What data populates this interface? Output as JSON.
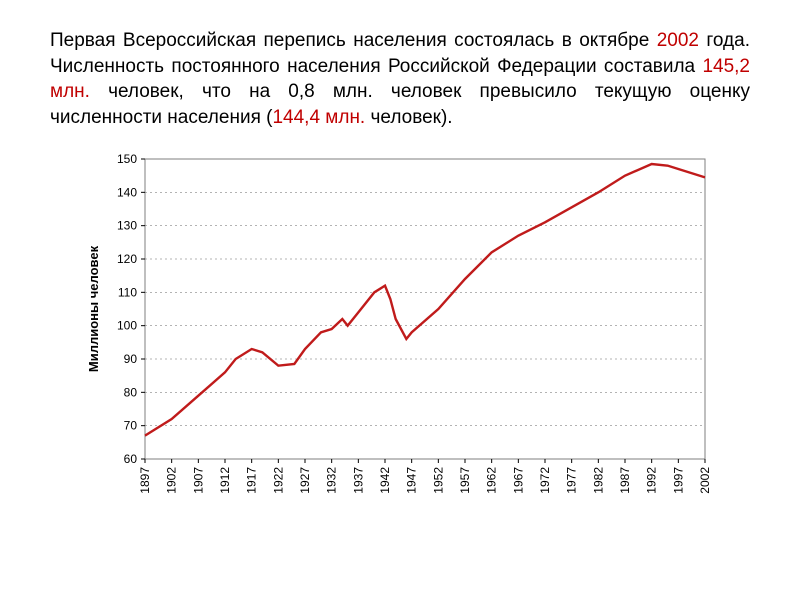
{
  "paragraph": {
    "parts": [
      {
        "text": "Первая Всероссийская перепись населения состоялась в октябре ",
        "hl": false
      },
      {
        "text": "2002",
        "hl": true
      },
      {
        "text": " года. Численность постоянного населения Российской Федерации составила ",
        "hl": false
      },
      {
        "text": "145,2 млн.",
        "hl": true
      },
      {
        "text": " человек, что на 0,8 млн. человек превысило текущую оценку численности населения (",
        "hl": false
      },
      {
        "text": "144,4 млн.",
        "hl": true
      },
      {
        "text": " человек).",
        "hl": false
      }
    ]
  },
  "chart": {
    "type": "line",
    "ylabel": "Миллионы человек",
    "yaxis": {
      "min": 60,
      "max": 150,
      "step": 10,
      "label_fontsize": 12
    },
    "xaxis": {
      "ticks": [
        1897,
        1902,
        1907,
        1912,
        1917,
        1922,
        1927,
        1932,
        1937,
        1942,
        1947,
        1952,
        1957,
        1962,
        1967,
        1972,
        1977,
        1982,
        1987,
        1992,
        1997,
        2002
      ],
      "label_fontsize": 12,
      "label_rotation": -90
    },
    "line_color": "#c01b1b",
    "grid_color": "#000000",
    "background_color": "#ffffff",
    "border_color": "#7f7f7f",
    "series": [
      {
        "x": 1897,
        "y": 67
      },
      {
        "x": 1902,
        "y": 72
      },
      {
        "x": 1907,
        "y": 79
      },
      {
        "x": 1912,
        "y": 86
      },
      {
        "x": 1914,
        "y": 90
      },
      {
        "x": 1917,
        "y": 93
      },
      {
        "x": 1919,
        "y": 92
      },
      {
        "x": 1922,
        "y": 88
      },
      {
        "x": 1925,
        "y": 88.5
      },
      {
        "x": 1927,
        "y": 93
      },
      {
        "x": 1930,
        "y": 98
      },
      {
        "x": 1932,
        "y": 99
      },
      {
        "x": 1934,
        "y": 102
      },
      {
        "x": 1935,
        "y": 100
      },
      {
        "x": 1937,
        "y": 104
      },
      {
        "x": 1940,
        "y": 110
      },
      {
        "x": 1942,
        "y": 112
      },
      {
        "x": 1943,
        "y": 108
      },
      {
        "x": 1944,
        "y": 102
      },
      {
        "x": 1946,
        "y": 96
      },
      {
        "x": 1947,
        "y": 98
      },
      {
        "x": 1952,
        "y": 105
      },
      {
        "x": 1957,
        "y": 114
      },
      {
        "x": 1962,
        "y": 122
      },
      {
        "x": 1967,
        "y": 127
      },
      {
        "x": 1972,
        "y": 131
      },
      {
        "x": 1977,
        "y": 135.5
      },
      {
        "x": 1982,
        "y": 140
      },
      {
        "x": 1987,
        "y": 145
      },
      {
        "x": 1992,
        "y": 148.5
      },
      {
        "x": 1995,
        "y": 148
      },
      {
        "x": 1997,
        "y": 147
      },
      {
        "x": 2002,
        "y": 144.5
      }
    ]
  }
}
